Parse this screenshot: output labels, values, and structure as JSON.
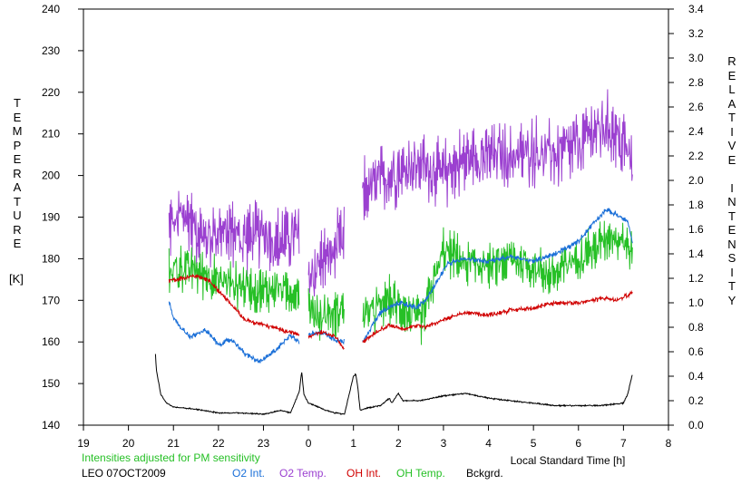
{
  "chart_data": {
    "type": "line",
    "left_axis_label": "TEMPERATURE",
    "left_axis_unit": "[K]",
    "right_axis_label": "RELATIVE INTENSITY",
    "xlabel": "Local Standard Time [h]",
    "x_ticks": [
      "19",
      "20",
      "21",
      "22",
      "23",
      "0",
      "1",
      "2",
      "3",
      "4",
      "5",
      "6",
      "7",
      "8"
    ],
    "xlim": [
      19,
      32
    ],
    "y_left_lim": [
      140,
      240
    ],
    "y_left_ticks": [
      "140",
      "150",
      "160",
      "170",
      "180",
      "190",
      "200",
      "210",
      "220",
      "230",
      "240"
    ],
    "y_right_lim": [
      0.0,
      3.4
    ],
    "y_right_ticks": [
      "0.0",
      "0.2",
      "0.4",
      "0.6",
      "0.8",
      "1.0",
      "1.2",
      "1.4",
      "1.6",
      "1.8",
      "2.0",
      "2.2",
      "2.4",
      "2.6",
      "2.8",
      "3.0",
      "3.2",
      "3.4"
    ],
    "note": "Intensities adjusted for PM sensitivity",
    "station": "LEO 07OCT2009",
    "legend": [
      {
        "label": "O2 Int.",
        "color": "#1a6fd8"
      },
      {
        "label": "O2 Temp.",
        "color": "#9b40d0"
      },
      {
        "label": "OH Int.",
        "color": "#d00000"
      },
      {
        "label": "OH Temp.",
        "color": "#26c026"
      },
      {
        "label": "Bckgrd.",
        "color": "#000000"
      }
    ],
    "series": [
      {
        "name": "O2 Temp.",
        "axis": "left",
        "color": "#9b40d0",
        "noise": 9,
        "segments": [
          {
            "x": [
              20.9,
              21.3,
              21.7,
              22.0,
              22.3,
              22.7,
              23.0,
              23.3,
              23.6,
              23.8
            ],
            "y": [
              188,
              190,
              185,
              187,
              186,
              185,
              186,
              184,
              186,
              185
            ]
          },
          {
            "x": [
              24.0,
              24.3,
              24.6,
              24.8
            ],
            "y": [
              175,
              180,
              182,
              185
            ]
          },
          {
            "x": [
              25.2,
              25.5,
              25.8,
              26.1,
              26.5,
              27.0,
              27.5,
              28.0,
              28.5,
              29.0,
              29.5,
              30.0,
              30.3,
              30.6,
              30.85,
              31.1,
              31.2
            ],
            "y": [
              196,
              198,
              200,
              202,
              203,
              200,
              204,
              205,
              204,
              206,
              205,
              207,
              210,
              212,
              210,
              205,
              202
            ]
          }
        ]
      },
      {
        "name": "OH Temp.",
        "axis": "left",
        "color": "#26c026",
        "noise": 6,
        "segments": [
          {
            "x": [
              20.9,
              21.3,
              21.7,
              22.0,
              22.3,
              22.7,
              23.0,
              23.3,
              23.6,
              23.8
            ],
            "y": [
              177,
              178,
              176,
              175,
              174,
              173,
              172,
              173,
              172,
              173
            ]
          },
          {
            "x": [
              24.0,
              24.3,
              24.6,
              24.8
            ],
            "y": [
              168,
              166,
              167,
              168
            ]
          },
          {
            "x": [
              25.2,
              25.5,
              25.8,
              26.1,
              26.5,
              27.0,
              27.5,
              28.0,
              28.5,
              29.0,
              29.5,
              30.0,
              30.3,
              30.6,
              30.85,
              31.1,
              31.2
            ],
            "y": [
              166,
              168,
              170,
              168,
              165,
              182,
              179,
              178,
              180,
              178,
              176,
              181,
              182,
              185,
              186,
              183,
              182
            ]
          }
        ]
      },
      {
        "name": "O2 Int.",
        "axis": "right",
        "color": "#1a6fd8",
        "noise": 0.025,
        "segments": [
          {
            "x": [
              20.9,
              21.0,
              21.2,
              21.4,
              21.7,
              22.0,
              22.3,
              22.6,
              22.9,
              23.1,
              23.4,
              23.6,
              23.8
            ],
            "y": [
              1.0,
              0.88,
              0.78,
              0.72,
              0.78,
              0.66,
              0.7,
              0.58,
              0.52,
              0.56,
              0.66,
              0.74,
              0.68
            ]
          },
          {
            "x": [
              24.0,
              24.3,
              24.6,
              24.8
            ],
            "y": [
              0.74,
              0.76,
              0.7,
              0.68
            ]
          },
          {
            "x": [
              25.2,
              25.4,
              25.6,
              25.9,
              26.1,
              26.4,
              26.6,
              26.9,
              27.1,
              27.5,
              28.0,
              28.5,
              29.0,
              29.5,
              30.0,
              30.3,
              30.6,
              30.85,
              31.1,
              31.2
            ],
            "y": [
              0.68,
              0.8,
              0.92,
              0.98,
              1.0,
              0.96,
              1.02,
              1.2,
              1.32,
              1.36,
              1.34,
              1.38,
              1.34,
              1.4,
              1.5,
              1.64,
              1.76,
              1.72,
              1.66,
              1.48
            ]
          }
        ]
      },
      {
        "name": "OH Int.",
        "axis": "right",
        "color": "#d00000",
        "noise": 0.02,
        "segments": [
          {
            "x": [
              20.9,
              21.2,
              21.5,
              21.8,
              22.0,
              22.3,
              22.6,
              23.0,
              23.4,
              23.8
            ],
            "y": [
              1.18,
              1.2,
              1.22,
              1.18,
              1.1,
              0.98,
              0.86,
              0.82,
              0.78,
              0.74
            ]
          },
          {
            "x": [
              24.0,
              24.3,
              24.6,
              24.8
            ],
            "y": [
              0.72,
              0.76,
              0.72,
              0.62
            ]
          },
          {
            "x": [
              25.2,
              25.5,
              25.8,
              26.1,
              26.4,
              26.6,
              27.0,
              27.5,
              28.0,
              28.5,
              29.0,
              29.5,
              30.0,
              30.3,
              30.6,
              30.85,
              31.2
            ],
            "y": [
              0.68,
              0.76,
              0.82,
              0.78,
              0.82,
              0.8,
              0.86,
              0.92,
              0.9,
              0.94,
              0.96,
              1.0,
              1.0,
              1.02,
              1.04,
              1.02,
              1.08
            ]
          }
        ]
      },
      {
        "name": "Bckgrd.",
        "axis": "right",
        "color": "#000000",
        "noise": 0.006,
        "segments": [
          {
            "x": [
              20.6,
              20.62,
              20.72,
              20.85,
              21.0,
              21.5,
              22.0,
              22.5,
              23.0,
              23.4,
              23.6,
              23.8,
              23.85,
              23.9,
              24.0,
              24.2,
              24.4,
              24.6,
              24.8,
              25.0,
              25.05,
              25.1,
              25.15,
              25.3,
              25.6,
              25.8,
              25.85,
              26.0,
              26.1,
              26.5,
              27.0,
              27.5,
              28.0,
              28.5,
              29.0,
              29.5,
              30.0,
              30.5,
              31.0,
              31.1,
              31.2
            ],
            "y": [
              0.58,
              0.45,
              0.25,
              0.18,
              0.15,
              0.13,
              0.1,
              0.1,
              0.09,
              0.12,
              0.1,
              0.28,
              0.44,
              0.25,
              0.18,
              0.15,
              0.12,
              0.1,
              0.09,
              0.4,
              0.42,
              0.3,
              0.12,
              0.14,
              0.16,
              0.22,
              0.18,
              0.26,
              0.2,
              0.2,
              0.24,
              0.26,
              0.22,
              0.2,
              0.18,
              0.16,
              0.16,
              0.16,
              0.18,
              0.26,
              0.42
            ]
          }
        ]
      }
    ]
  }
}
